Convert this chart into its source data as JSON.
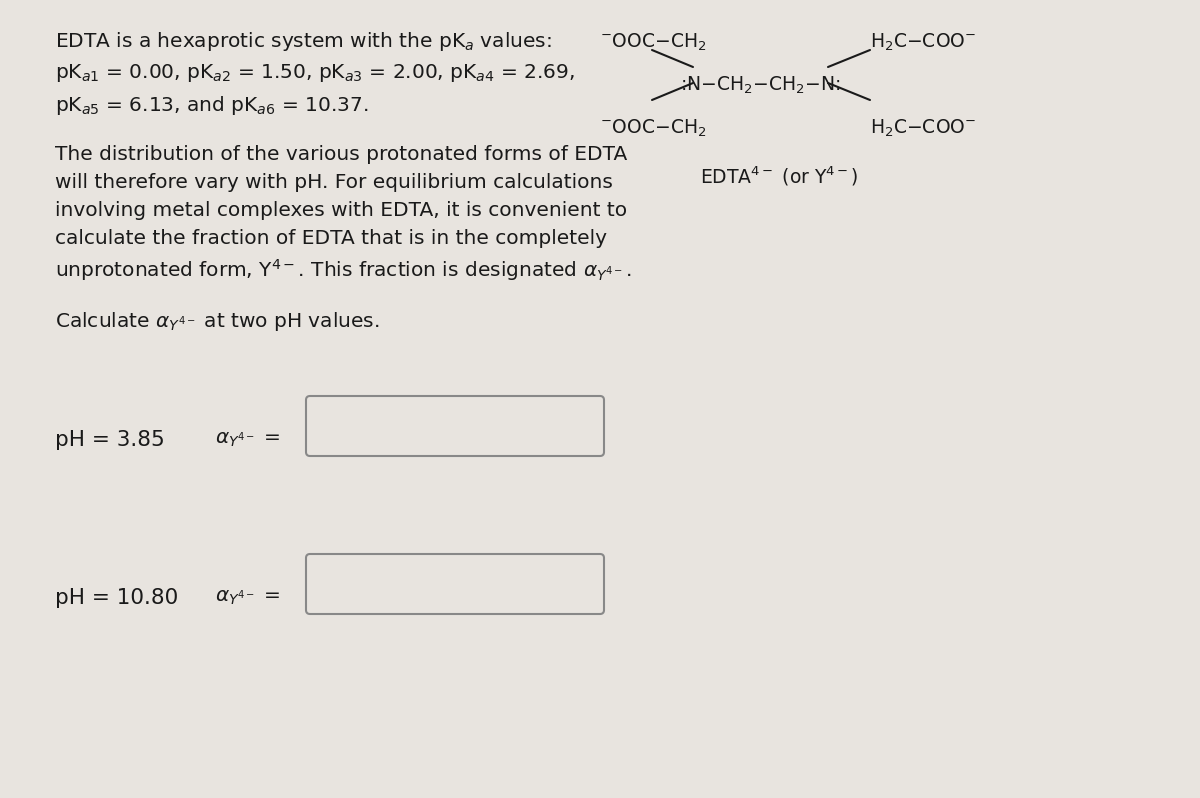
{
  "background_color": "#e8e4df",
  "text_color": "#1a1a1a",
  "box_edge_color": "#888888",
  "font_size_main": 14.5,
  "font_size_struct": 13.5,
  "line1": "EDTA is a hexaprotic system with the pK$_{a}$ values:",
  "line2": "pK$_{a1}$ = 0.00, pK$_{a2}$ = 1.50, pK$_{a3}$ = 2.00, pK$_{a4}$ = 2.69,",
  "line3": "pK$_{a5}$ = 6.13, and pK$_{a6}$ = 10.37.",
  "para1": "The distribution of the various protonated forms of EDTA",
  "para2": "will therefore vary with pH. For equilibrium calculations",
  "para3": "involving metal complexes with EDTA, it is convenient to",
  "para4": "calculate the fraction of EDTA that is in the completely",
  "para5": "unprotonated form, Y$^{4-}$. This fraction is designated $\\alpha_{Y^{4-}}$.",
  "calc_line": "Calculate $\\alpha_{Y^{4-}}$ at two pH values.",
  "ph1": "pH = 3.85",
  "ph2": "pH = 10.80",
  "alpha_label": "$\\alpha_{Y^{4-}}$ =",
  "edta_label": "EDTA$^{4-}$ (or Y$^{4-}$)"
}
